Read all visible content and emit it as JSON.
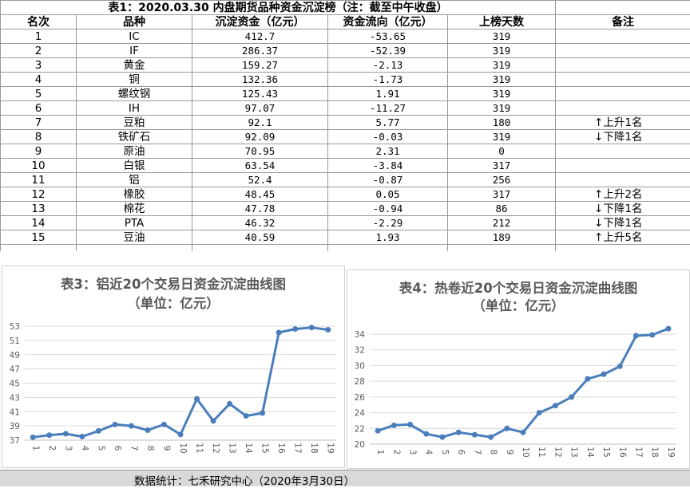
{
  "table": {
    "title": "表1：2020.03.30 内盘期货品种资金沉淀榜（注：截至中午收盘）",
    "headers": [
      "名次",
      "品种",
      "沉淀资金（亿元）",
      "资金流向（亿元）",
      "上榜天数",
      "备注"
    ],
    "rows": [
      {
        "rank": "1",
        "name": "IC",
        "capital": "412.7",
        "flow": "-53.65",
        "days": "319",
        "note": ""
      },
      {
        "rank": "2",
        "name": "IF",
        "capital": "286.37",
        "flow": "-52.39",
        "days": "319",
        "note": ""
      },
      {
        "rank": "3",
        "name": "黄金",
        "capital": "159.27",
        "flow": "-2.13",
        "days": "319",
        "note": ""
      },
      {
        "rank": "4",
        "name": "铜",
        "capital": "132.36",
        "flow": "-1.73",
        "days": "319",
        "note": ""
      },
      {
        "rank": "5",
        "name": "螺纹钢",
        "capital": "125.43",
        "flow": "1.91",
        "days": "319",
        "note": ""
      },
      {
        "rank": "6",
        "name": "IH",
        "capital": "97.07",
        "flow": "-11.27",
        "days": "319",
        "note": ""
      },
      {
        "rank": "7",
        "name": "豆粕",
        "capital": "92.1",
        "flow": "5.77",
        "days": "180",
        "note": "↑上升1名"
      },
      {
        "rank": "8",
        "name": "铁矿石",
        "capital": "92.09",
        "flow": "-0.03",
        "days": "319",
        "note": "↓下降1名"
      },
      {
        "rank": "9",
        "name": "原油",
        "capital": "70.95",
        "flow": "2.31",
        "days": "0",
        "note": ""
      },
      {
        "rank": "10",
        "name": "白银",
        "capital": "63.54",
        "flow": "-3.84",
        "days": "317",
        "note": ""
      },
      {
        "rank": "11",
        "name": "铝",
        "capital": "52.4",
        "flow": "-0.87",
        "days": "256",
        "note": ""
      },
      {
        "rank": "12",
        "name": "橡胶",
        "capital": "48.45",
        "flow": "0.05",
        "days": "317",
        "note": "↑上升2名"
      },
      {
        "rank": "13",
        "name": "棉花",
        "capital": "47.78",
        "flow": "-0.94",
        "days": "86",
        "note": "↓下降1名"
      },
      {
        "rank": "14",
        "name": "PTA",
        "capital": "46.32",
        "flow": "-2.29",
        "days": "212",
        "note": "↓下降1名"
      },
      {
        "rank": "15",
        "name": "豆油",
        "capital": "40.59",
        "flow": "1.93",
        "days": "189",
        "note": "↑上升5名"
      }
    ]
  },
  "chart_data": [
    {
      "type": "line",
      "title": "表3：铝近20个交易日资金沉淀曲线图",
      "subtitle": "（单位：亿元）",
      "x": [
        "1",
        "2",
        "3",
        "4",
        "5",
        "6",
        "7",
        "8",
        "9",
        "10",
        "11",
        "12",
        "13",
        "14",
        "15",
        "16",
        "17",
        "18",
        "19"
      ],
      "series": [
        {
          "values": [
            37.4,
            37.7,
            37.9,
            37.5,
            38.3,
            39.2,
            39.0,
            38.4,
            39.2,
            37.8,
            42.8,
            39.7,
            42.1,
            40.4,
            40.8,
            52.1,
            52.6,
            52.8,
            52.5
          ]
        }
      ],
      "ylim": [
        37,
        53
      ],
      "yticks": [
        37,
        39,
        41,
        43,
        45,
        47,
        49,
        51,
        53
      ],
      "grid": true,
      "color": "#4a7ebb"
    },
    {
      "type": "line",
      "title": "表4：热卷近20个交易日资金沉淀曲线图",
      "subtitle": "（单位：亿元）",
      "x": [
        "1",
        "2",
        "3",
        "4",
        "5",
        "6",
        "7",
        "8",
        "9",
        "10",
        "11",
        "12",
        "13",
        "14",
        "15",
        "16",
        "17",
        "18",
        "19"
      ],
      "series": [
        {
          "values": [
            21.7,
            22.4,
            22.5,
            21.3,
            20.9,
            21.5,
            21.2,
            20.9,
            22.0,
            21.5,
            24.0,
            24.9,
            26.0,
            28.3,
            28.9,
            29.9,
            33.8,
            33.9,
            34.7
          ]
        }
      ],
      "ylim": [
        20,
        34
      ],
      "yticks": [
        20,
        22,
        24,
        26,
        28,
        30,
        32,
        34
      ],
      "grid": true,
      "color": "#4a7ebb"
    }
  ],
  "footer": {
    "text": "数据统计：七禾研究中心（2020年3月30日）"
  }
}
